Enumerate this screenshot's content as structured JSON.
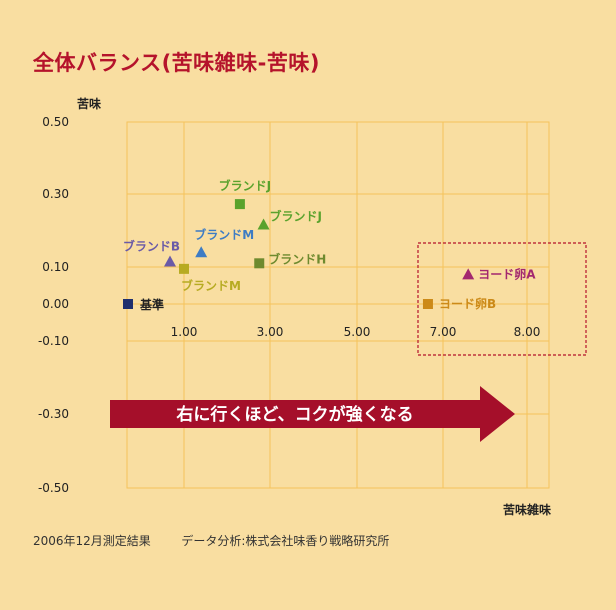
{
  "title": "全体バランス(苦味雑味-苦味)",
  "footer": {
    "date": "2006年12月測定結果",
    "source": "データ分析:株式会社味香り戦略研究所"
  },
  "chart_data": {
    "type": "scatter",
    "ylabel": "苦味",
    "xlabel": "苦味雑味",
    "y_ticks": [
      "0.50",
      "0.30",
      "0.10",
      "0.00",
      "-0.10",
      "-0.30",
      "-0.50"
    ],
    "x_ticks": [
      "1.00",
      "3.00",
      "5.00",
      "7.00",
      "8.00"
    ],
    "grid": true,
    "arrow_text": "右に行くほど、コクが強くなる",
    "colors": {
      "title": "#b5132b",
      "grid": "#f5c35b",
      "arrow": "#a50f2a",
      "highlight_box": "#b5132b",
      "kijun": "#1f2f6e",
      "brand_b": "#6a5aa7",
      "brand_m_blue": "#3e7cc4",
      "brand_m_olive": "#b7ab22",
      "brand_j": "#5aa22c",
      "brand_h": "#6e8a2e",
      "yodo_a": "#a3286f",
      "yodo_b": "#cc8a18"
    },
    "points": [
      {
        "name": "基準",
        "x": 0.0,
        "y": 0.0,
        "shape": "square",
        "color": "#1f2f6e",
        "label_color": "#222222"
      },
      {
        "name": "ブランドB",
        "x": 0.75,
        "y": 0.115,
        "shape": "triangle",
        "color": "#6a5aa7",
        "label_color": "#6a5aa7"
      },
      {
        "name": "ブランドM",
        "x": 1.0,
        "y": 0.095,
        "shape": "square",
        "color": "#b7ab22",
        "label_color": "#b7ab22"
      },
      {
        "name": "ブランドM",
        "x": 1.4,
        "y": 0.14,
        "shape": "triangle",
        "color": "#3e7cc4",
        "label_color": "#3e7cc4"
      },
      {
        "name": "ブランドJ",
        "x": 2.3,
        "y": 0.27,
        "shape": "square",
        "color": "#5aa22c",
        "label_color": "#5aa22c"
      },
      {
        "name": "ブランドJ",
        "x": 2.85,
        "y": 0.215,
        "shape": "triangle",
        "color": "#5aa22c",
        "label_color": "#5aa22c"
      },
      {
        "name": "ブランドH",
        "x": 2.75,
        "y": 0.11,
        "shape": "square",
        "color": "#6e8a2e",
        "label_color": "#6e8a2e"
      },
      {
        "name": "ヨード卵A",
        "x": 7.3,
        "y": 0.08,
        "shape": "triangle",
        "color": "#a3286f",
        "label_color": "#a3286f"
      },
      {
        "name": "ヨード卵B",
        "x": 6.65,
        "y": 0.0,
        "shape": "square",
        "color": "#cc8a18",
        "label_color": "#cc8a18"
      }
    ]
  }
}
